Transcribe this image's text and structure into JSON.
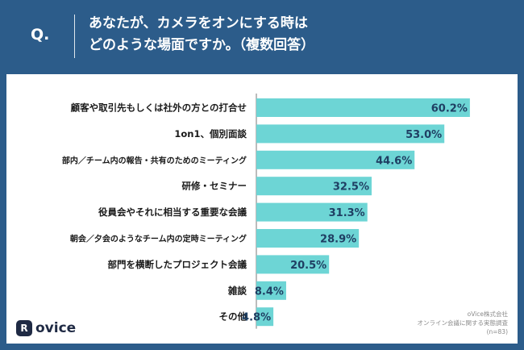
{
  "header": {
    "q_label": "Q.",
    "title_line1": "あなたが、カメラをオンにする時は",
    "title_line2": "どのような場面ですか。（複数回答）"
  },
  "colors": {
    "background": "#2c5c8a",
    "bar": "#6dd5d5",
    "label_text": "#1a1a1a",
    "value_text": "#1f3f63"
  },
  "chart_data": {
    "type": "bar",
    "orientation": "horizontal",
    "categories": [
      "顧客や取引先もしくは社外の方との打合せ",
      "1on1、個別面談",
      "部内／チーム内の報告・共有のためのミーティング",
      "研修・セミナー",
      "役員会やそれに相当する重要な会議",
      "朝会／夕会のようなチーム内の定時ミーティング",
      "部門を横断したプロジェクト会議",
      "雑談",
      "その他"
    ],
    "values": [
      60.2,
      53.0,
      44.6,
      32.5,
      31.3,
      28.9,
      20.5,
      8.4,
      4.8
    ],
    "value_labels": [
      "60.2%",
      "53.0%",
      "44.6%",
      "32.5%",
      "31.3%",
      "28.9%",
      "20.5%",
      "8.4%",
      "4.8%"
    ],
    "xlim": [
      0,
      100
    ]
  },
  "logo": {
    "mark": "R",
    "text": "ovice"
  },
  "source": {
    "line1": "oVice株式会社",
    "line2": "オンライン会議に関する実態調査",
    "line3": "(n=83)"
  }
}
